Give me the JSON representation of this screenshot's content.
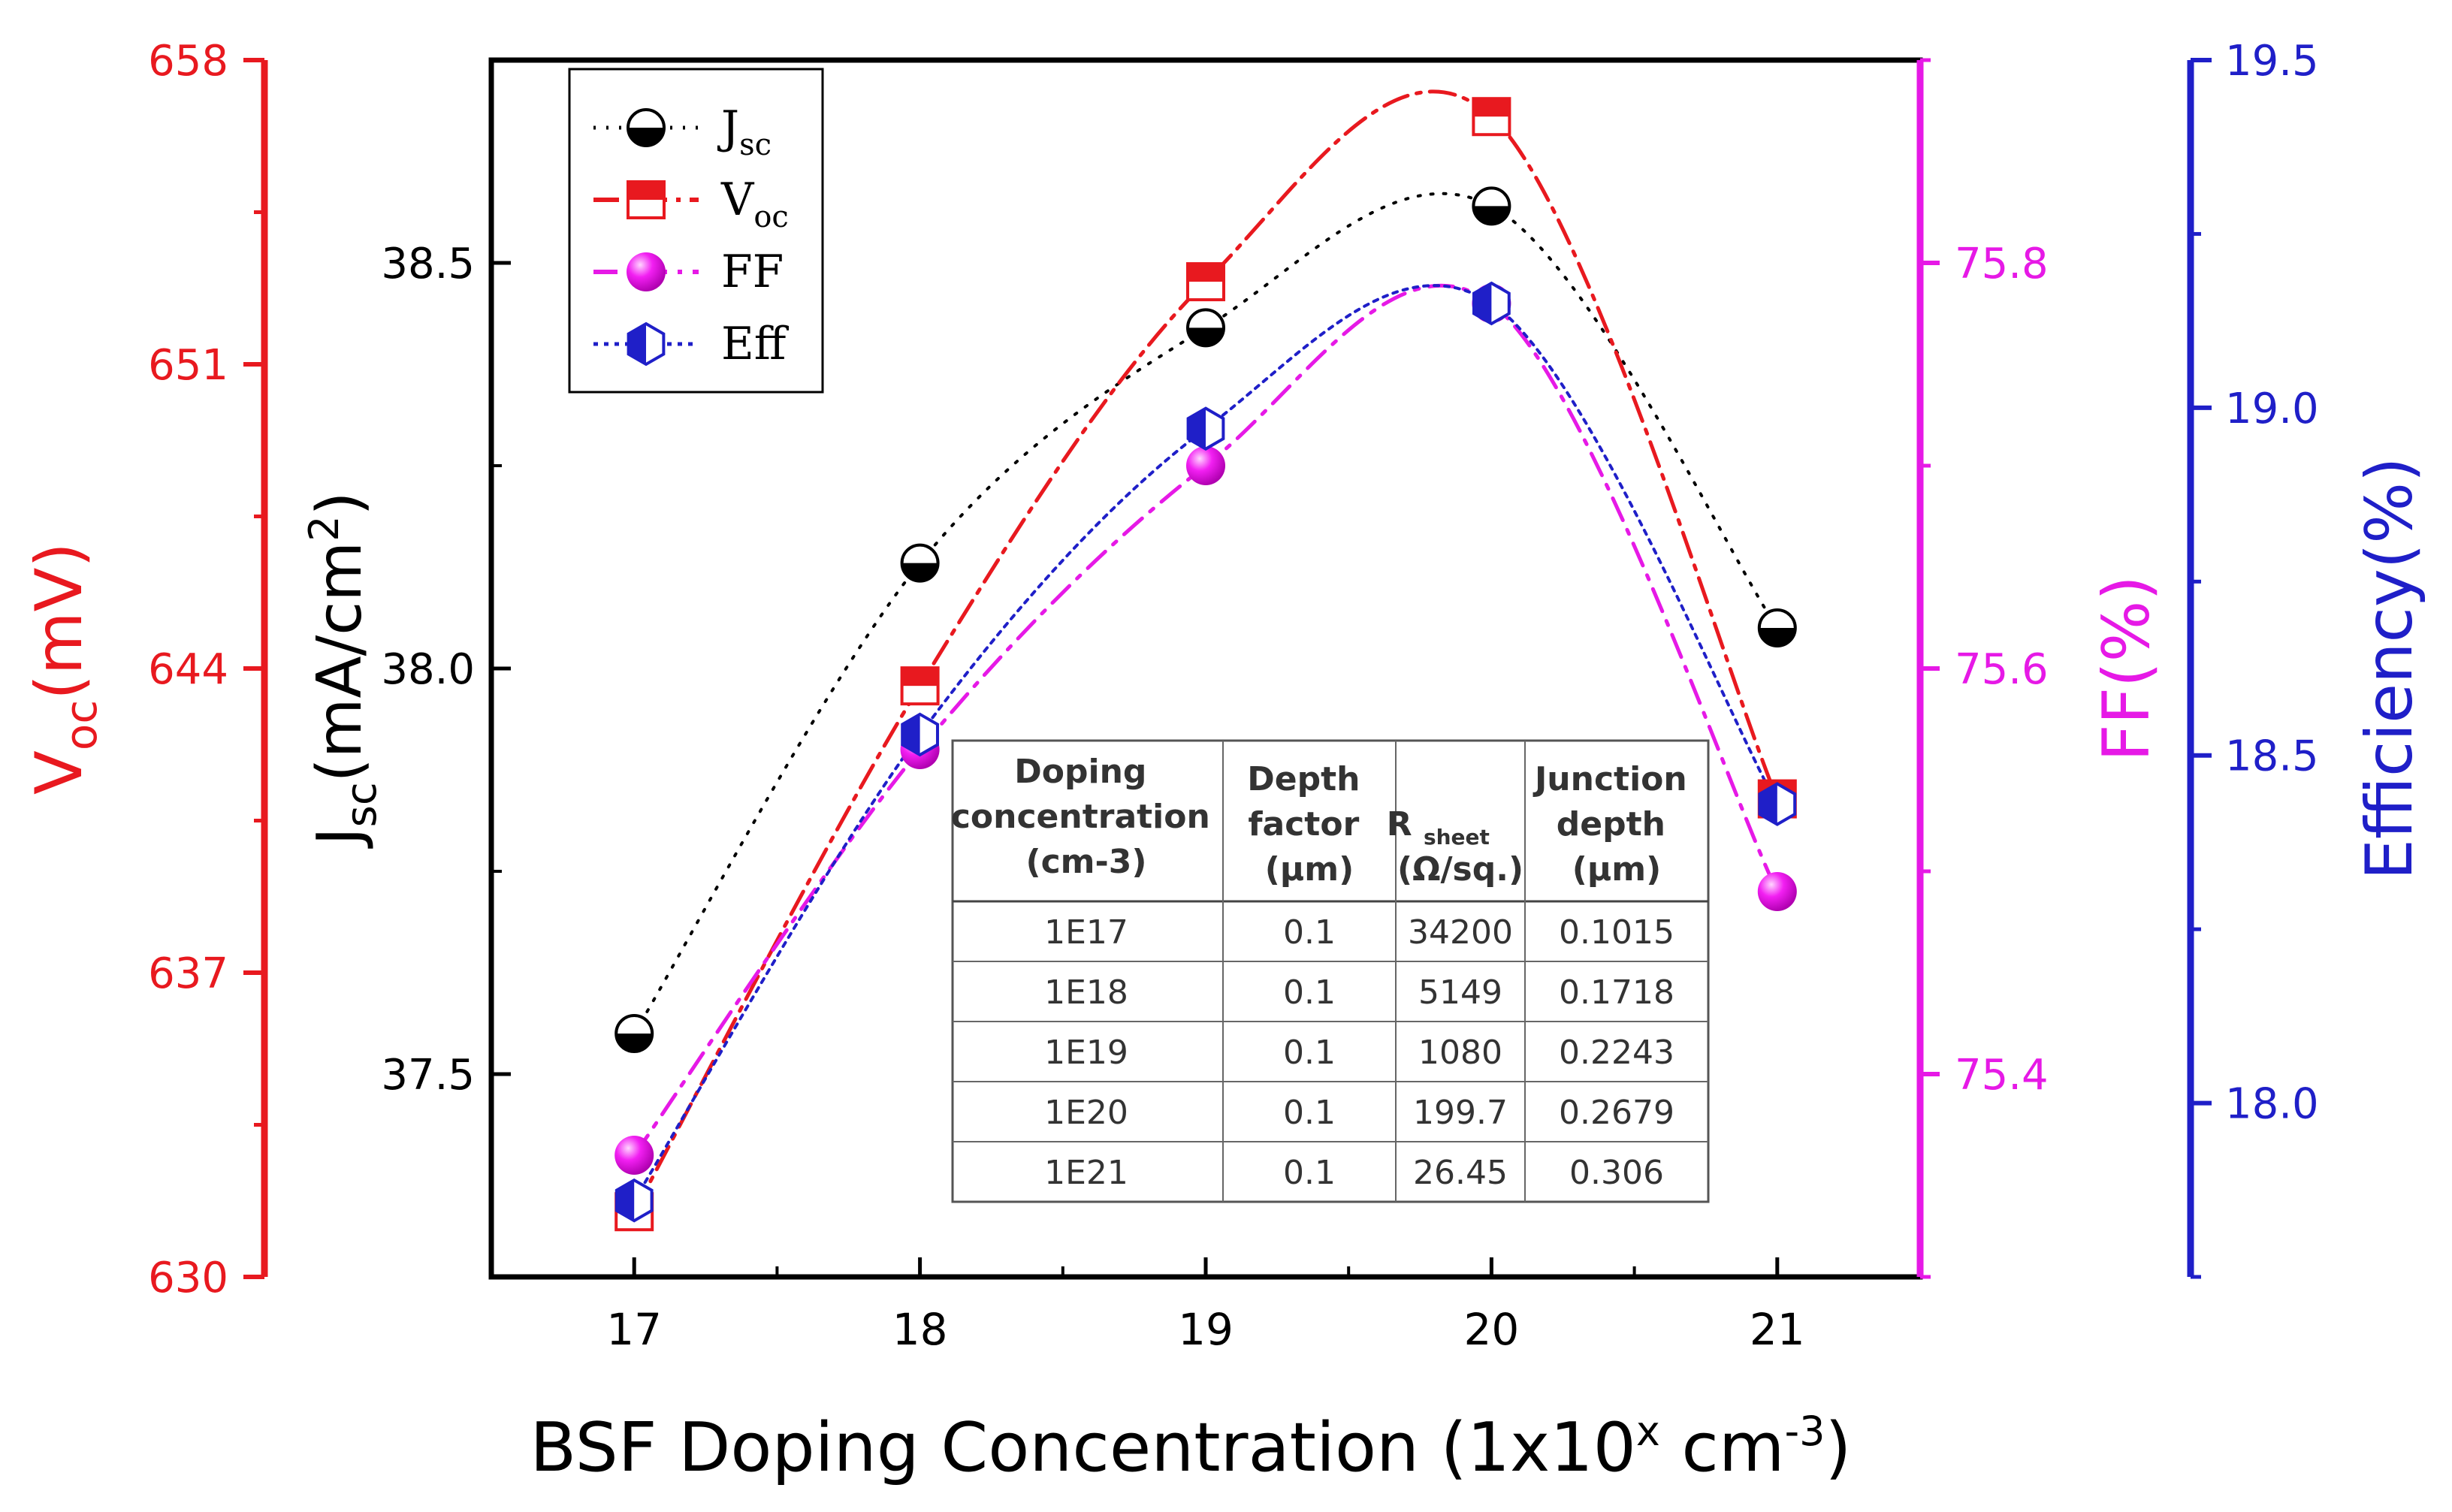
{
  "chart_data": {
    "type": "line",
    "x": [
      17,
      18,
      19,
      20,
      21
    ],
    "xlabel": "BSF Doping Concentration (1x10",
    "xlabel_sup1": "x",
    "xlabel_mid": " cm",
    "xlabel_sup2": "-3",
    "xlabel_end": ")",
    "xlim": [
      16.5,
      21.5
    ],
    "xticks": [
      "17",
      "18",
      "19",
      "20",
      "21"
    ],
    "axes": {
      "voc": {
        "label_main": "V",
        "label_sub": "oc",
        "label_unit": "(mV)",
        "ylim": [
          630,
          658
        ],
        "ticks": [
          "630",
          "637",
          "644",
          "651",
          "658"
        ],
        "color": "#e8191f"
      },
      "jsc": {
        "label_main": "J",
        "label_sub": "sc",
        "label_unit": "(mA/cm",
        "label_sup": "2",
        "label_end": ")",
        "ylim": [
          37.25,
          38.75
        ],
        "ticks": [
          "37.5",
          "38.0",
          "38.5"
        ],
        "color": "#000000"
      },
      "ff": {
        "label": "FF(%)",
        "ylim": [
          75.3,
          75.9
        ],
        "ticks": [
          "75.4",
          "75.6",
          "75.8"
        ],
        "color": "#e619e6"
      },
      "eff": {
        "label": "Efficiency(%)",
        "ylim": [
          17.75,
          19.5
        ],
        "ticks": [
          "18.0",
          "18.5",
          "19.0",
          "19.5"
        ],
        "color": "#1f1fc8"
      }
    },
    "series": [
      {
        "name": "J",
        "sub": "sc",
        "axis": "jsc",
        "values": [
          37.55,
          38.13,
          38.42,
          38.57,
          38.05
        ],
        "color": "#000000",
        "marker": "half-circle"
      },
      {
        "name": "V",
        "sub": "oc",
        "axis": "voc",
        "values": [
          631.5,
          643.6,
          652.9,
          656.7,
          641.0
        ],
        "color": "#e8191f",
        "marker": "half-square"
      },
      {
        "name": "FF",
        "sub": "",
        "axis": "ff",
        "values": [
          75.36,
          75.56,
          75.7,
          75.78,
          75.49
        ],
        "color": "#e619e6",
        "marker": "sphere"
      },
      {
        "name": "Eff",
        "sub": "",
        "axis": "eff",
        "values": [
          17.86,
          18.53,
          18.97,
          19.15,
          18.43
        ],
        "color": "#1f1fc8",
        "marker": "half-hexagon"
      }
    ]
  },
  "table": {
    "headers": [
      [
        "Doping",
        "concentration",
        "(cm-3)"
      ],
      [
        "Depth",
        "factor",
        "(µm)"
      ],
      [
        "R",
        "sheet",
        "(Ω/sq.)"
      ],
      [
        "Junction",
        "depth",
        "(µm)"
      ]
    ],
    "rows": [
      [
        "1E17",
        "0.1",
        "34200",
        "0.1015"
      ],
      [
        "1E18",
        "0.1",
        "5149",
        "0.1718"
      ],
      [
        "1E19",
        "0.1",
        "1080",
        "0.2243"
      ],
      [
        "1E20",
        "0.1",
        "199.7",
        "0.2679"
      ],
      [
        "1E21",
        "0.1",
        "26.45",
        "0.306"
      ]
    ]
  }
}
